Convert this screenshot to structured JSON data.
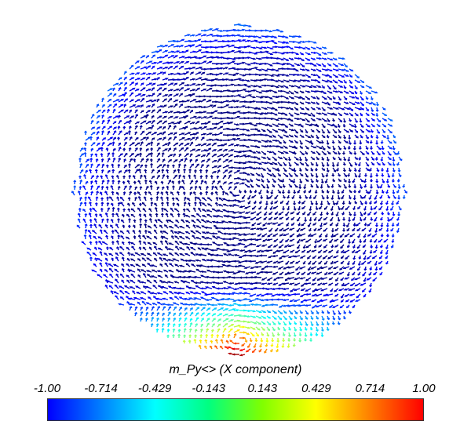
{
  "figure": {
    "legend_title": "m_Py<> (X component)",
    "tick_labels": [
      "-1.00",
      "-0.714",
      "-0.429",
      "-0.143",
      "0.143",
      "0.429",
      "0.714",
      "1.00"
    ],
    "colormap": "jet",
    "colormap_range": [
      -1.0,
      1.0
    ],
    "colormap_stops": [
      "#0000ff",
      "#0080ff",
      "#00ffff",
      "#00ff80",
      "#80ff00",
      "#ffff00",
      "#ff8000",
      "#ff0000"
    ],
    "background": "#ffffff",
    "glyph_type": "arrows",
    "description_of_field": "sphere of vector glyphs colored by X component; mostly blue (-1) top/center, cyan-green toward lower rim, yellow-red at bottom"
  }
}
